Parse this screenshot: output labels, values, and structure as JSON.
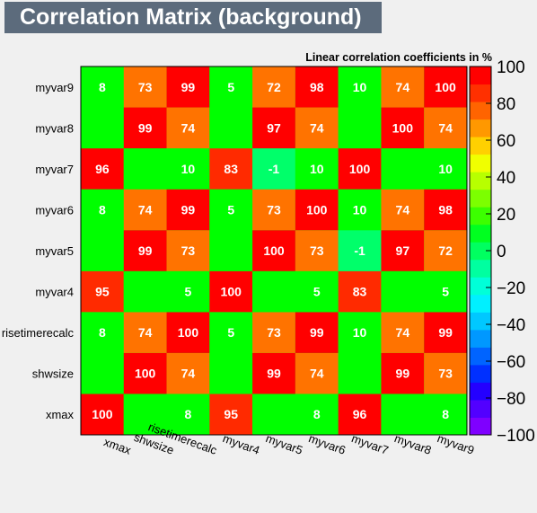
{
  "window": {
    "title": "Correlation Matrix (background)"
  },
  "chart_data": {
    "type": "heatmap",
    "title": "Linear correlation coefficients in %",
    "variables": [
      "xmax",
      "shwsize",
      "risetimerecalc",
      "myvar4",
      "myvar5",
      "myvar6",
      "myvar7",
      "myvar8",
      "myvar9"
    ],
    "x_labels": [
      "xmax",
      "shwsize",
      "risetimerecalc",
      "myvar4",
      "myvar5",
      "myvar6",
      "myvar7",
      "myvar8",
      "myvar9"
    ],
    "y_labels": [
      "xmax",
      "shwsize",
      "risetimerecalc",
      "myvar4",
      "myvar5",
      "myvar6",
      "myvar7",
      "myvar8",
      "myvar9"
    ],
    "values": [
      [
        100,
        null,
        8,
        95,
        null,
        8,
        96,
        null,
        8
      ],
      [
        null,
        100,
        74,
        null,
        99,
        74,
        null,
        99,
        73
      ],
      [
        8,
        74,
        100,
        5,
        73,
        99,
        10,
        74,
        99
      ],
      [
        95,
        null,
        5,
        100,
        null,
        5,
        83,
        null,
        5
      ],
      [
        null,
        99,
        73,
        null,
        100,
        73,
        -1,
        97,
        72
      ],
      [
        8,
        74,
        99,
        5,
        73,
        100,
        10,
        74,
        98
      ],
      [
        96,
        null,
        10,
        83,
        -1,
        10,
        100,
        null,
        10
      ],
      [
        null,
        99,
        74,
        null,
        97,
        74,
        null,
        100,
        74
      ],
      [
        8,
        73,
        99,
        5,
        72,
        98,
        10,
        74,
        100
      ]
    ],
    "zlim": [
      -100,
      100
    ],
    "colorbar_ticks": [
      100,
      80,
      60,
      40,
      20,
      0,
      -20,
      -40,
      -60,
      -80,
      -100
    ],
    "colorbar_labels": [
      "100",
      "80",
      "60",
      "40",
      "20",
      "0",
      "−20",
      "−40",
      "−60",
      "−80",
      "−100"
    ],
    "palette": [
      "#7f00ff",
      "#5200ff",
      "#2400ff",
      "#0030ff",
      "#0064ff",
      "#0098ff",
      "#00c8ff",
      "#00f0ff",
      "#00ffd8",
      "#00ffa0",
      "#00ff60",
      "#00ff20",
      "#3cff00",
      "#7cff00",
      "#b8ff00",
      "#f0ff00",
      "#ffd000",
      "#ff9800",
      "#ff6400",
      "#ff3000",
      "#ff0000"
    ],
    "cell_colors": {
      "96-100": "#ff0000",
      "83-95": "#ff2a00",
      "60-82": "#ff7300",
      "0-15": "#00ff00",
      "-1": "#00ff6a"
    }
  }
}
